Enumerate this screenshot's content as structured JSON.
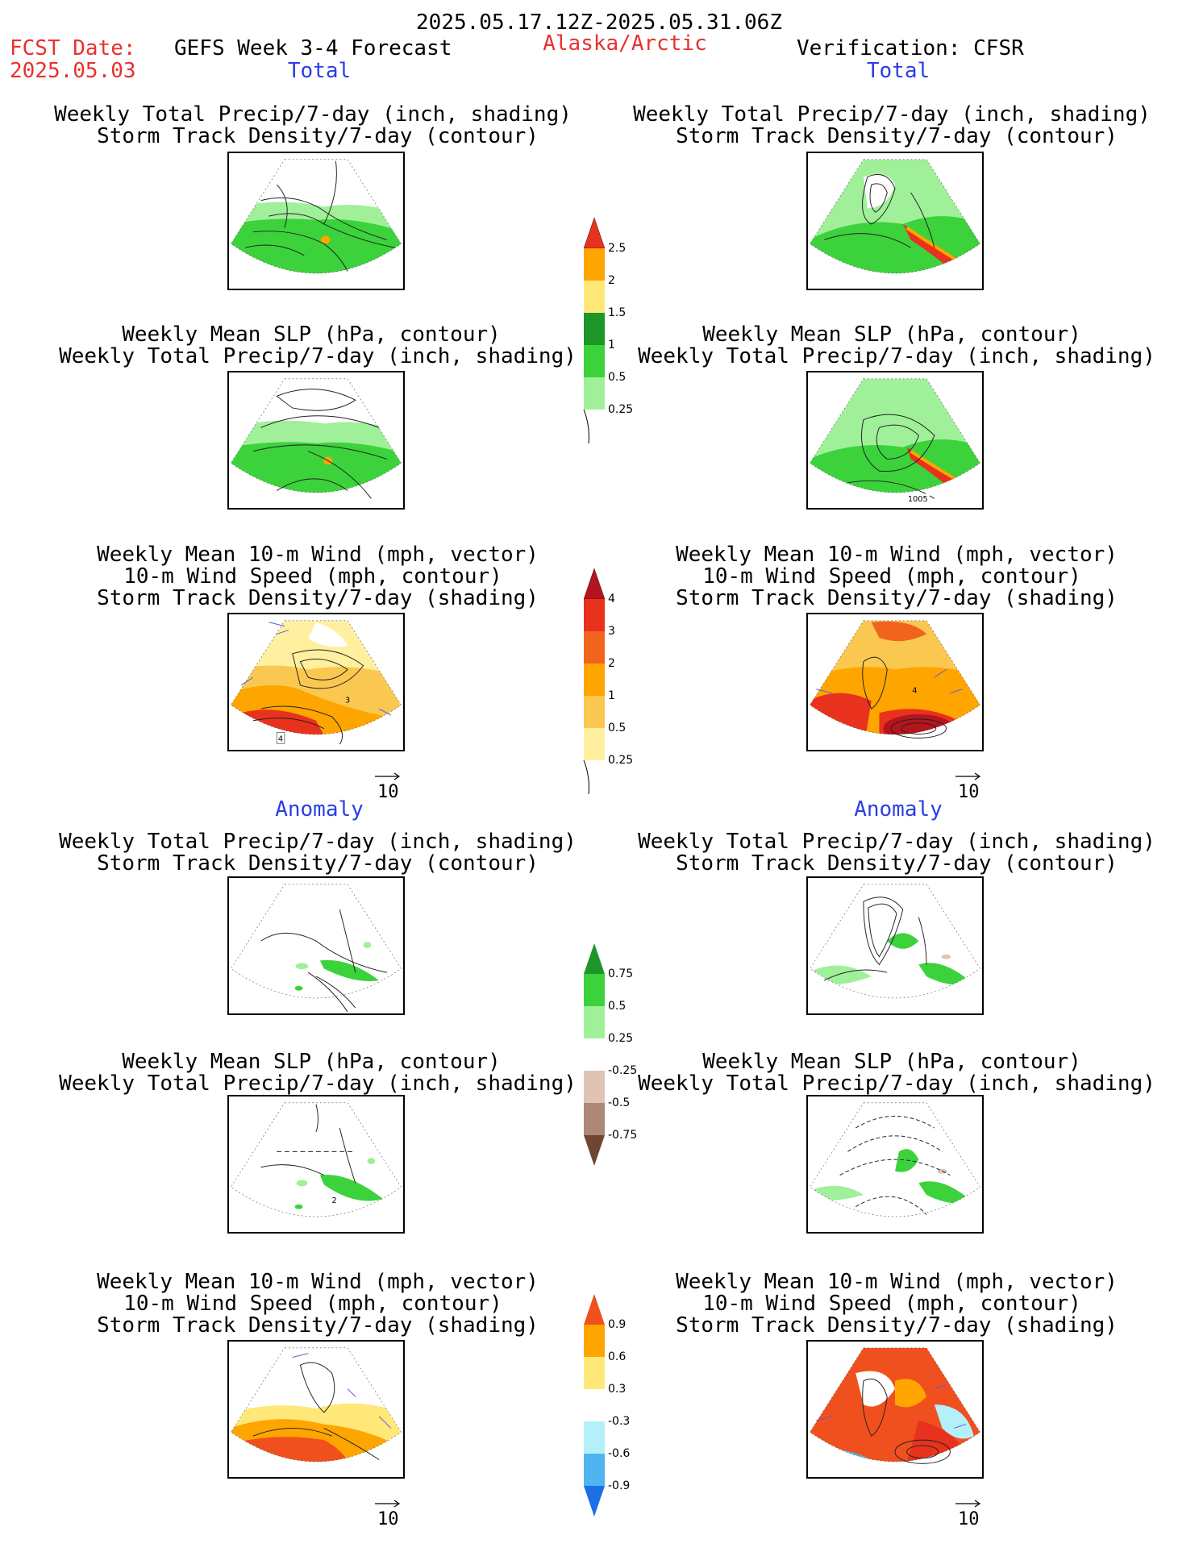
{
  "header": {
    "period": "2025.05.17.12Z-2025.05.31.06Z",
    "fcst_label": "FCST Date:",
    "fcst_date": "2025.05.03",
    "model": "GEFS Week 3-4 Forecast",
    "region": "Alaska/Arctic",
    "verification": "Verification: CFSR"
  },
  "sections": {
    "total": "Total",
    "anomaly": "Anomaly"
  },
  "titles": {
    "precip_storm": [
      "Weekly Total Precip/7-day (inch, shading)",
      "Storm Track Density/7-day (contour)"
    ],
    "slp_precip": [
      "Weekly Mean SLP (hPa, contour)",
      "Weekly Total Precip/7-day (inch, shading)"
    ],
    "wind_storm": [
      "Weekly Mean 10-m Wind (mph, vector)",
      "10-m Wind Speed (mph, contour)",
      "Storm Track Density/7-day (shading)"
    ]
  },
  "colorbars": {
    "precip_total": {
      "labels": [
        "2.5",
        "2",
        "1.5",
        "1",
        "0.5",
        "0.25"
      ],
      "colors": [
        "#e8321e",
        "#ffa500",
        "#ffe878",
        "#1e9628",
        "#3cd23c",
        "#a0f09a"
      ]
    },
    "storm_total": {
      "labels": [
        "4",
        "3",
        "2",
        "1",
        "0.5",
        "0.25"
      ],
      "colors": [
        "#b4141e",
        "#e8321e",
        "#f0641e",
        "#ffa500",
        "#fac850",
        "#fff0a0"
      ]
    },
    "precip_anom": {
      "labels": [
        "0.75",
        "0.5",
        "0.25",
        "-0.25",
        "-0.5",
        "-0.75"
      ],
      "colors_top": [
        "#1e9628",
        "#3cd23c",
        "#a0f09a"
      ],
      "colors_bottom": [
        "#e1c3b4",
        "#af8778",
        "#6e4632"
      ]
    },
    "storm_anom": {
      "labels": [
        "0.9",
        "0.6",
        "0.3",
        "-0.3",
        "-0.6",
        "-0.9"
      ],
      "colors_top": [
        "#f0501e",
        "#ffa500",
        "#ffe878"
      ],
      "colors_bottom": [
        "#b4f0fa",
        "#50b4f0",
        "#1e6ee6"
      ]
    }
  },
  "map_labels": {
    "slp_label": "1005",
    "storm_label_left": "4",
    "storm_label_left2": "3",
    "storm_label_right": "4",
    "anom_label": "2"
  },
  "vector_ref": "10"
}
